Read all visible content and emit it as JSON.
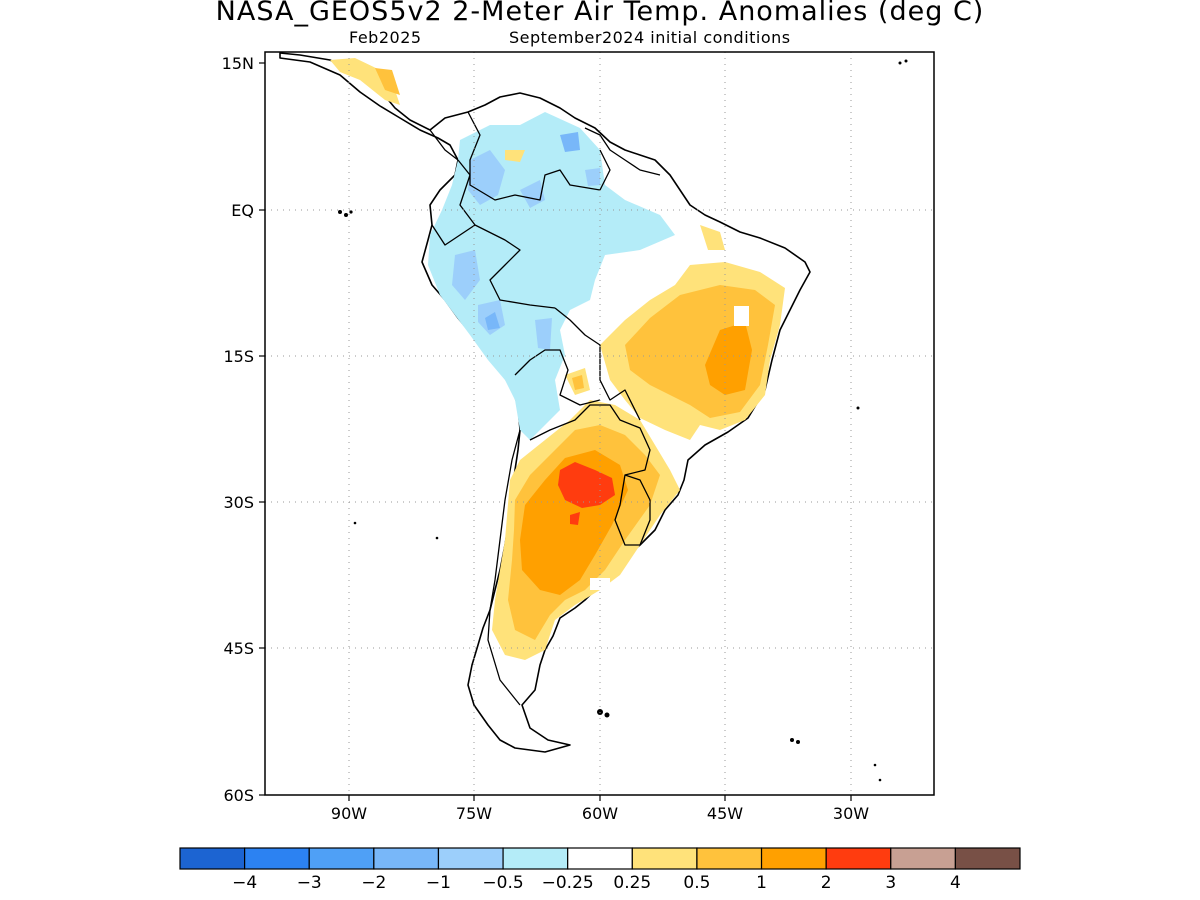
{
  "title": "NASA_GEOS5v2 2-Meter Air Temp. Anomalies (deg C)",
  "subtitle_left": "Feb2025",
  "subtitle_right": "September2024 initial conditions",
  "map": {
    "lat_ticks": [
      "15N",
      "EQ",
      "15S",
      "30S",
      "45S",
      "60S"
    ],
    "lon_ticks": [
      "90W",
      "75W",
      "60W",
      "45W",
      "30W"
    ],
    "grid": "dotted"
  },
  "colorbar": {
    "colors": [
      "#1c64d2",
      "#2c82f2",
      "#4fa0f6",
      "#78b7f9",
      "#9ccffb",
      "#b4ecf8",
      "#ffffff",
      "#ffe27a",
      "#ffc23c",
      "#ffa000",
      "#ff3c0f",
      "#c8a093",
      "#785046"
    ],
    "labels": [
      "−4",
      "−3",
      "−2",
      "−1",
      "−0.5",
      "−0.25",
      "0.25",
      "0.5",
      "1",
      "2",
      "3",
      "4"
    ]
  }
}
